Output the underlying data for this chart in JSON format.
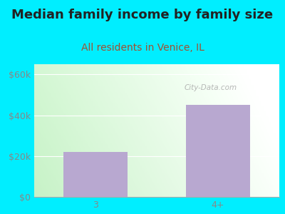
{
  "title": "Median family income by family size",
  "subtitle": "All residents in Venice, IL",
  "categories": [
    "3",
    "4+"
  ],
  "values": [
    22000,
    45000
  ],
  "bar_color": "#b8a8d0",
  "outer_bg": "#00eeff",
  "title_color": "#222222",
  "subtitle_color": "#a05030",
  "axis_label_color": "#888888",
  "yticks": [
    0,
    20000,
    40000,
    60000
  ],
  "ytick_labels": [
    "$0",
    "$20k",
    "$40k",
    "$60k"
  ],
  "ylim": [
    0,
    65000
  ],
  "title_fontsize": 13,
  "subtitle_fontsize": 10,
  "tick_fontsize": 9,
  "watermark": "City-Data.com"
}
